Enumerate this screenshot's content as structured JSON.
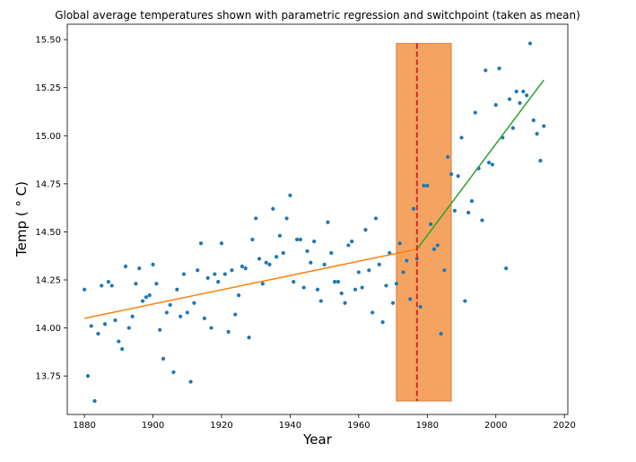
{
  "chart_data": {
    "type": "scatter",
    "title": "Global average temperatures shown with parametric regression and switchpoint (taken as mean)",
    "xlabel": "Year",
    "ylabel": "Temp ($^\\circ$C)",
    "ylabel_display": "Temp ( ° C)",
    "xlim": [
      1875,
      2021
    ],
    "ylim": [
      13.55,
      15.58
    ],
    "xticks": [
      1880,
      1900,
      1920,
      1940,
      1960,
      1980,
      2000,
      2020
    ],
    "yticks": [
      13.75,
      14.0,
      14.25,
      14.5,
      14.75,
      15.0,
      15.25,
      15.5
    ],
    "ytick_labels": [
      "13.75",
      "14.00",
      "14.25",
      "14.50",
      "14.75",
      "15.00",
      "15.25",
      "15.50"
    ],
    "grid": false,
    "colors": {
      "points": "#1f77b4",
      "regression_before": "#ff7f0e",
      "regression_after": "#2ca02c",
      "switchpoint_line": "#d62728",
      "interval_fill": "#f4a460",
      "interval_edge": "#e07b39"
    },
    "series": [
      {
        "kind": "points",
        "x": [
          1880,
          1881,
          1882,
          1883,
          1884,
          1885,
          1886,
          1887,
          1888,
          1889,
          1890,
          1891,
          1892,
          1893,
          1894,
          1895,
          1896,
          1897,
          1898,
          1899,
          1900,
          1901,
          1902,
          1903,
          1904,
          1905,
          1906,
          1907,
          1908,
          1909,
          1910,
          1911,
          1912,
          1913,
          1914,
          1915,
          1916,
          1917,
          1918,
          1919,
          1920,
          1921,
          1922,
          1923,
          1924,
          1925,
          1926,
          1927,
          1928,
          1929,
          1930,
          1931,
          1932,
          1933,
          1934,
          1935,
          1936,
          1937,
          1938,
          1939,
          1940,
          1941,
          1942,
          1943,
          1944,
          1945,
          1946,
          1947,
          1948,
          1949,
          1950,
          1951,
          1952,
          1953,
          1954,
          1955,
          1956,
          1957,
          1958,
          1959,
          1960,
          1961,
          1962,
          1963,
          1964,
          1965,
          1966,
          1967,
          1968,
          1969,
          1970,
          1971,
          1972,
          1973,
          1974,
          1975,
          1976,
          1977,
          1978,
          1979,
          1980,
          1981,
          1982,
          1983,
          1984,
          1985,
          1986,
          1987,
          1988,
          1989,
          1990,
          1991,
          1992,
          1993,
          1994,
          1995,
          1996,
          1997,
          1998,
          1999,
          2000,
          2001,
          2002,
          2003,
          2004,
          2005,
          2006,
          2007,
          2008,
          2009,
          2010,
          2011,
          2012,
          2013,
          2014
        ],
        "y": [
          14.2,
          13.75,
          14.01,
          13.62,
          13.97,
          14.22,
          14.02,
          14.24,
          14.22,
          14.04,
          13.93,
          13.89,
          14.32,
          14.0,
          14.06,
          14.23,
          14.31,
          14.14,
          14.16,
          14.17,
          14.33,
          14.23,
          13.99,
          13.84,
          14.08,
          14.12,
          13.77,
          14.2,
          14.06,
          14.28,
          14.08,
          13.72,
          14.13,
          14.3,
          14.44,
          14.05,
          14.26,
          14.0,
          14.28,
          14.24,
          14.44,
          14.28,
          13.98,
          14.3,
          14.07,
          14.17,
          14.32,
          14.31,
          13.95,
          14.46,
          14.57,
          14.36,
          14.23,
          14.34,
          14.33,
          14.62,
          14.37,
          14.48,
          14.39,
          14.57,
          14.69,
          14.24,
          14.46,
          14.46,
          14.21,
          14.4,
          14.34,
          14.45,
          14.2,
          14.14,
          14.33,
          14.55,
          14.39,
          14.24,
          14.24,
          14.18,
          14.13,
          14.43,
          14.45,
          14.2,
          14.29,
          14.21,
          14.51,
          14.3,
          14.08,
          14.57,
          14.33,
          14.03,
          14.22,
          14.39,
          14.13,
          14.23,
          14.44,
          14.29,
          14.35,
          14.15,
          14.62,
          14.36,
          14.11,
          14.74,
          14.74,
          14.54,
          14.41,
          14.43,
          13.97,
          14.3,
          14.89,
          14.8,
          14.61,
          14.79,
          14.99,
          14.14,
          14.6,
          14.66,
          15.12,
          14.83,
          14.56,
          15.34,
          14.86,
          14.85,
          15.16,
          15.35,
          14.99,
          14.31,
          15.19,
          15.04,
          15.23,
          15.17,
          15.23,
          15.21,
          15.48,
          15.08,
          15.01,
          14.87,
          15.05
        ]
      },
      {
        "kind": "line",
        "name": "regression before switchpoint",
        "x": [
          1880,
          1977
        ],
        "y": [
          14.05,
          14.41
        ]
      },
      {
        "kind": "line",
        "name": "regression after switchpoint",
        "x": [
          1977,
          2014
        ],
        "y": [
          14.41,
          15.29
        ]
      }
    ],
    "switchpoint": {
      "mean": 1977,
      "interval": [
        1971,
        1987
      ],
      "y_span": [
        13.62,
        15.48
      ]
    }
  }
}
